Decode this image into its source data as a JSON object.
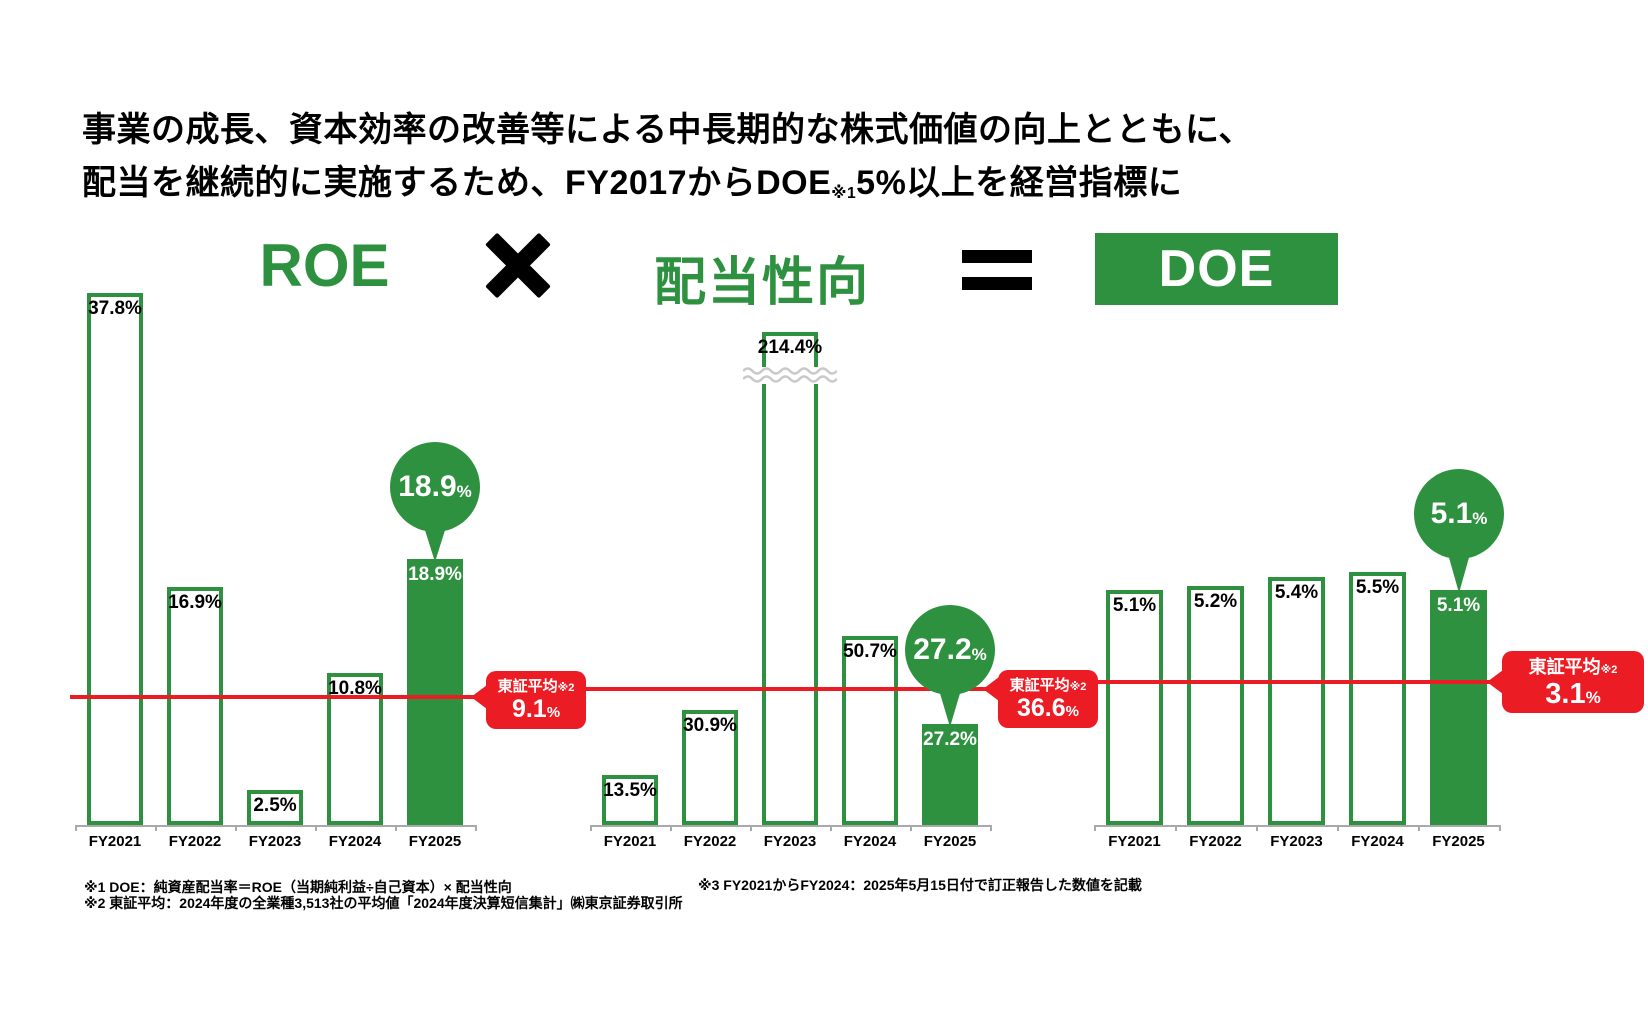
{
  "title": {
    "line1": "事業の成長、資本効率の改善等による中長期的な株式価値の向上とともに、",
    "line2_prefix": "配当を継続的に実施するため、FY2017からDOE",
    "line2_note": "※1",
    "line2_suffix": "5%以上を経営指標に"
  },
  "formula": {
    "multiply_icon": "heavy-x",
    "equals_icon": "equals"
  },
  "colors": {
    "green": "#2E9140",
    "red": "#EC1C24",
    "axis_gray": "#A9A9A9",
    "break_gray": "#C9C9C9",
    "text": "#000000"
  },
  "chart_data": [
    {
      "type": "bar",
      "title": "ROE",
      "unit": "%",
      "categories": [
        "FY2021",
        "FY2022",
        "FY2023",
        "FY2024",
        "FY2025"
      ],
      "values": [
        37.8,
        16.9,
        2.5,
        10.8,
        18.9
      ],
      "value_labels": [
        "37.8%",
        "16.9%",
        "2.5%",
        "10.8%",
        "18.9%"
      ],
      "highlight_index": 4,
      "highlight_balloon": {
        "number": "18.9",
        "unit": "%"
      },
      "average": {
        "label": "東証平均",
        "label_note": "※2",
        "number": "9.1",
        "unit": "%",
        "value": 9.1
      },
      "ylim": [
        0,
        40
      ],
      "grid": false
    },
    {
      "type": "bar",
      "title": "配当性向",
      "unit": "%",
      "categories": [
        "FY2021",
        "FY2022",
        "FY2023",
        "FY2024",
        "FY2025"
      ],
      "values": [
        13.5,
        30.9,
        214.4,
        50.7,
        27.2
      ],
      "value_labels": [
        "13.5%",
        "30.9%",
        "214.4%",
        "50.7%",
        "27.2%"
      ],
      "highlight_index": 4,
      "highlight_balloon": {
        "number": "27.2",
        "unit": "%"
      },
      "average": {
        "label": "東証平均",
        "label_note": "※2",
        "number": "36.6",
        "unit": "%",
        "value": 36.6
      },
      "axis_break_index": 2,
      "ylim": [
        0,
        60
      ],
      "grid": false
    },
    {
      "type": "bar",
      "title": "DOE",
      "unit": "%",
      "categories": [
        "FY2021",
        "FY2022",
        "FY2023",
        "FY2024",
        "FY2025"
      ],
      "values": [
        5.1,
        5.2,
        5.4,
        5.5,
        5.1
      ],
      "value_labels": [
        "5.1%",
        "5.2%",
        "5.4%",
        "5.5%",
        "5.1%"
      ],
      "highlight_index": 4,
      "highlight_balloon": {
        "number": "5.1",
        "unit": "%"
      },
      "average": {
        "label": "東証平均",
        "label_note": "※2",
        "number": "3.1",
        "unit": "%",
        "value": 3.1
      },
      "ylim": [
        0,
        6
      ],
      "grid": false
    }
  ],
  "footnotes": {
    "note1": "※1 DOE：純資産配当率＝ROE（当期純利益÷自己資本）× 配当性向",
    "note2": "※2 東証平均：2024年度の全業種3,513社の平均値「2024年度決算短信集計」㈱東京証券取引所",
    "note3": "※3 FY2021からFY2024：2025年5月15日付で訂正報告した数値を記載"
  }
}
